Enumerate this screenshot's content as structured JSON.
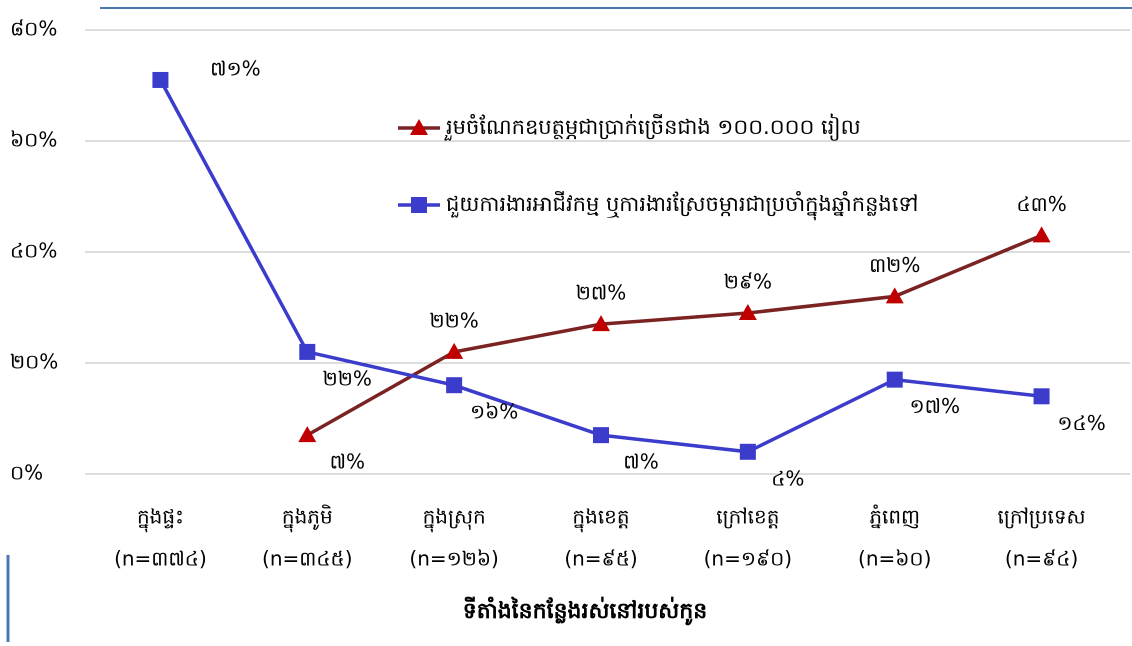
{
  "chart_data": {
    "type": "line",
    "categories": [
      "ក្នុងផ្ទះ",
      "ក្នុងភូមិ",
      "ក្នុងស្រុក",
      "ក្នុងខេត្ត",
      "ក្រៅខេត្ត",
      "ភ្នំពេញ",
      "ក្រៅប្រទេស"
    ],
    "category_counts": [
      "(n=៣៧៤)",
      "(n=៣៤៥)",
      "(n=១២៦)",
      "(n=៩៥)",
      "(n=១៩០)",
      "(n=៦០)",
      "(n=៩៤)"
    ],
    "x_label": "ទីតាំងនៃកន្លែងរស់នៅរបស់កូន",
    "series": [
      {
        "name": "រួមចំណែកឧបត្ថម្ភជាប្រាក់ច្រើនជាង ១០០.០០០ រៀល",
        "color": "#7b2323",
        "marker_color": "#c00000",
        "marker": "triangle",
        "values": [
          null,
          7,
          22,
          27,
          29,
          32,
          43
        ],
        "value_labels": [
          null,
          "៧%",
          "២២%",
          "២៧%",
          "២៩%",
          "៣២%",
          "៤៣%"
        ]
      },
      {
        "name": "ជួយការងារអាជីវកម្ម ឬការងារស្រែចម្ការជាប្រចាំក្នុងឆ្នាំកន្លងទៅ",
        "color": "#3b3bcc",
        "marker_color": "#3b3bcc",
        "marker": "square",
        "values": [
          71,
          22,
          16,
          7,
          4,
          17,
          14
        ],
        "value_labels": [
          "៧១%",
          "២២%",
          "១៦%",
          "៧%",
          "៤%",
          "១៧%",
          "១៤%"
        ]
      }
    ],
    "ylim": [
      0,
      80
    ],
    "yticks": [
      {
        "value": 0,
        "label": "០%"
      },
      {
        "value": 20,
        "label": "២០%"
      },
      {
        "value": 40,
        "label": "៤០%"
      },
      {
        "value": 60,
        "label": "៦០%"
      },
      {
        "value": 80,
        "label": "៨០%"
      }
    ],
    "grid": true
  }
}
